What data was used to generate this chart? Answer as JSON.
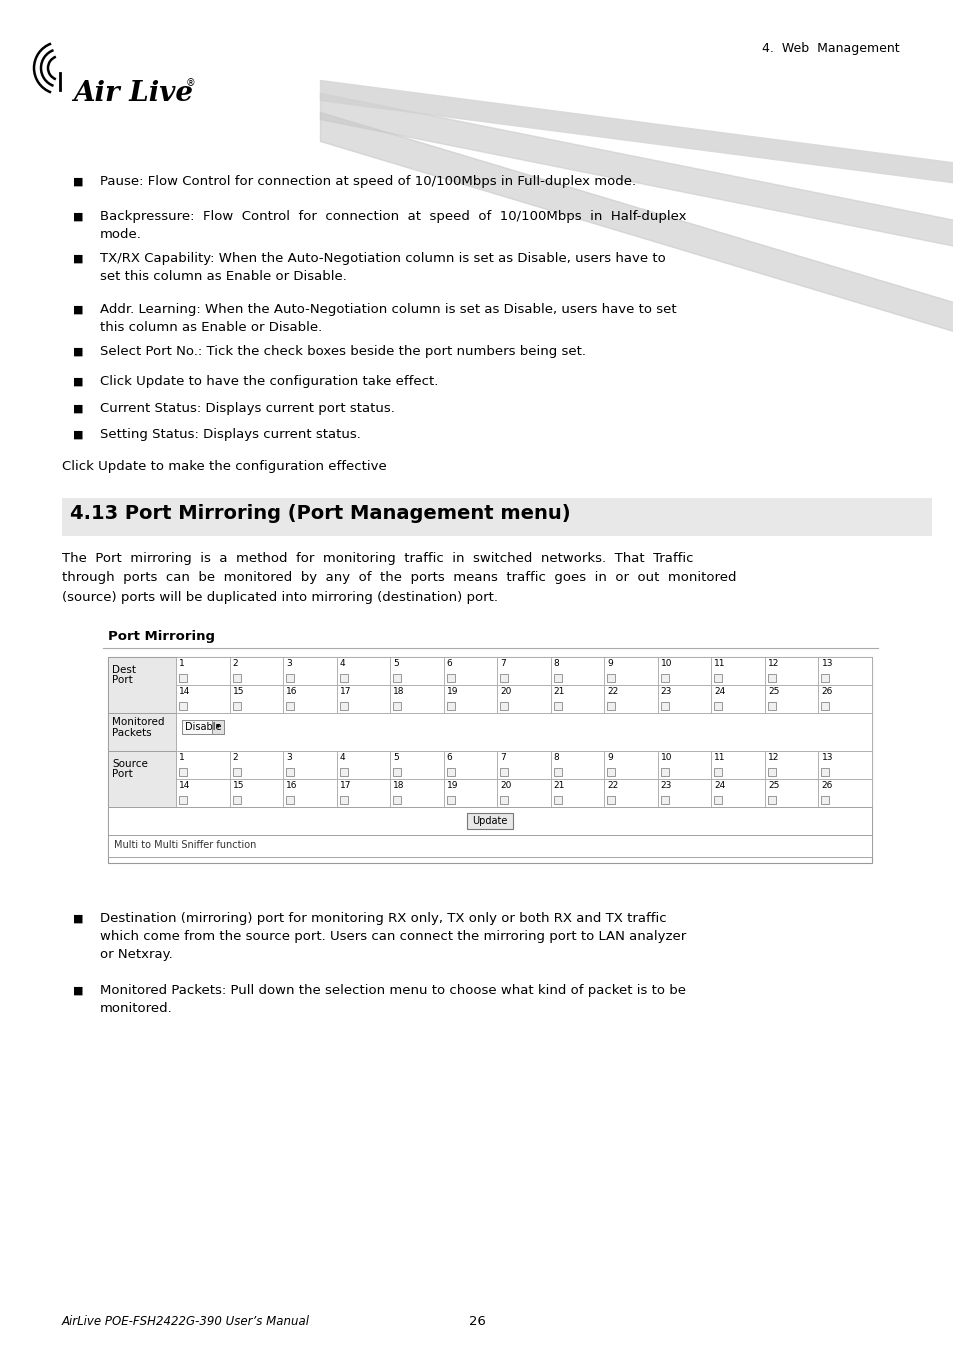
{
  "header_text": "4.  Web  Management",
  "section_title": "4.13 Port Mirroring (Port Management menu)",
  "section_title_bg": "#e8e8e8",
  "body_text_color": "#000000",
  "page_bg": "#ffffff",
  "footer_left": "AirLive POE-FSH2422G-390 User’s Manual",
  "footer_page": "26",
  "bullet_items": [
    "Pause: Flow Control for connection at speed of 10/100Mbps in Full-duplex mode.",
    "Backpressure:  Flow  Control  for  connection  at  speed  of  10/100Mbps  in  Half-duplex\nmode.",
    "TX/RX Capability: When the Auto-Negotiation column is set as Disable, users have to\nset this column as Enable or Disable.",
    "Addr. Learning: When the Auto-Negotiation column is set as Disable, users have to set\nthis column as Enable or Disable.",
    "Select Port No.: Tick the check boxes beside the port numbers being set.",
    "Click Update to have the configuration take effect.",
    "Current Status: Displays current port status.",
    "Setting Status: Displays current status."
  ],
  "click_update_text": "Click Update to make the configuration effective",
  "intro_text": "The  Port  mirroring  is  a  method  for  monitoring  traffic  in  switched  networks.  That  Traffic\nthrough  ports  can  be  monitored  by  any  of  the  ports  means  traffic  goes  in  or  out  monitored\n(source) ports will be duplicated into mirroring (destination) port.",
  "port_mirroring_label": "Port Mirroring",
  "bullet_items2": [
    "Destination (mirroring) port for monitoring RX only, TX only or both RX and TX traffic\nwhich come from the source port. Users can connect the mirroring port to LAN analyzer\nor Netxray.",
    "Monitored Packets: Pull down the selection menu to choose what kind of packet is to be\nmonitored."
  ]
}
